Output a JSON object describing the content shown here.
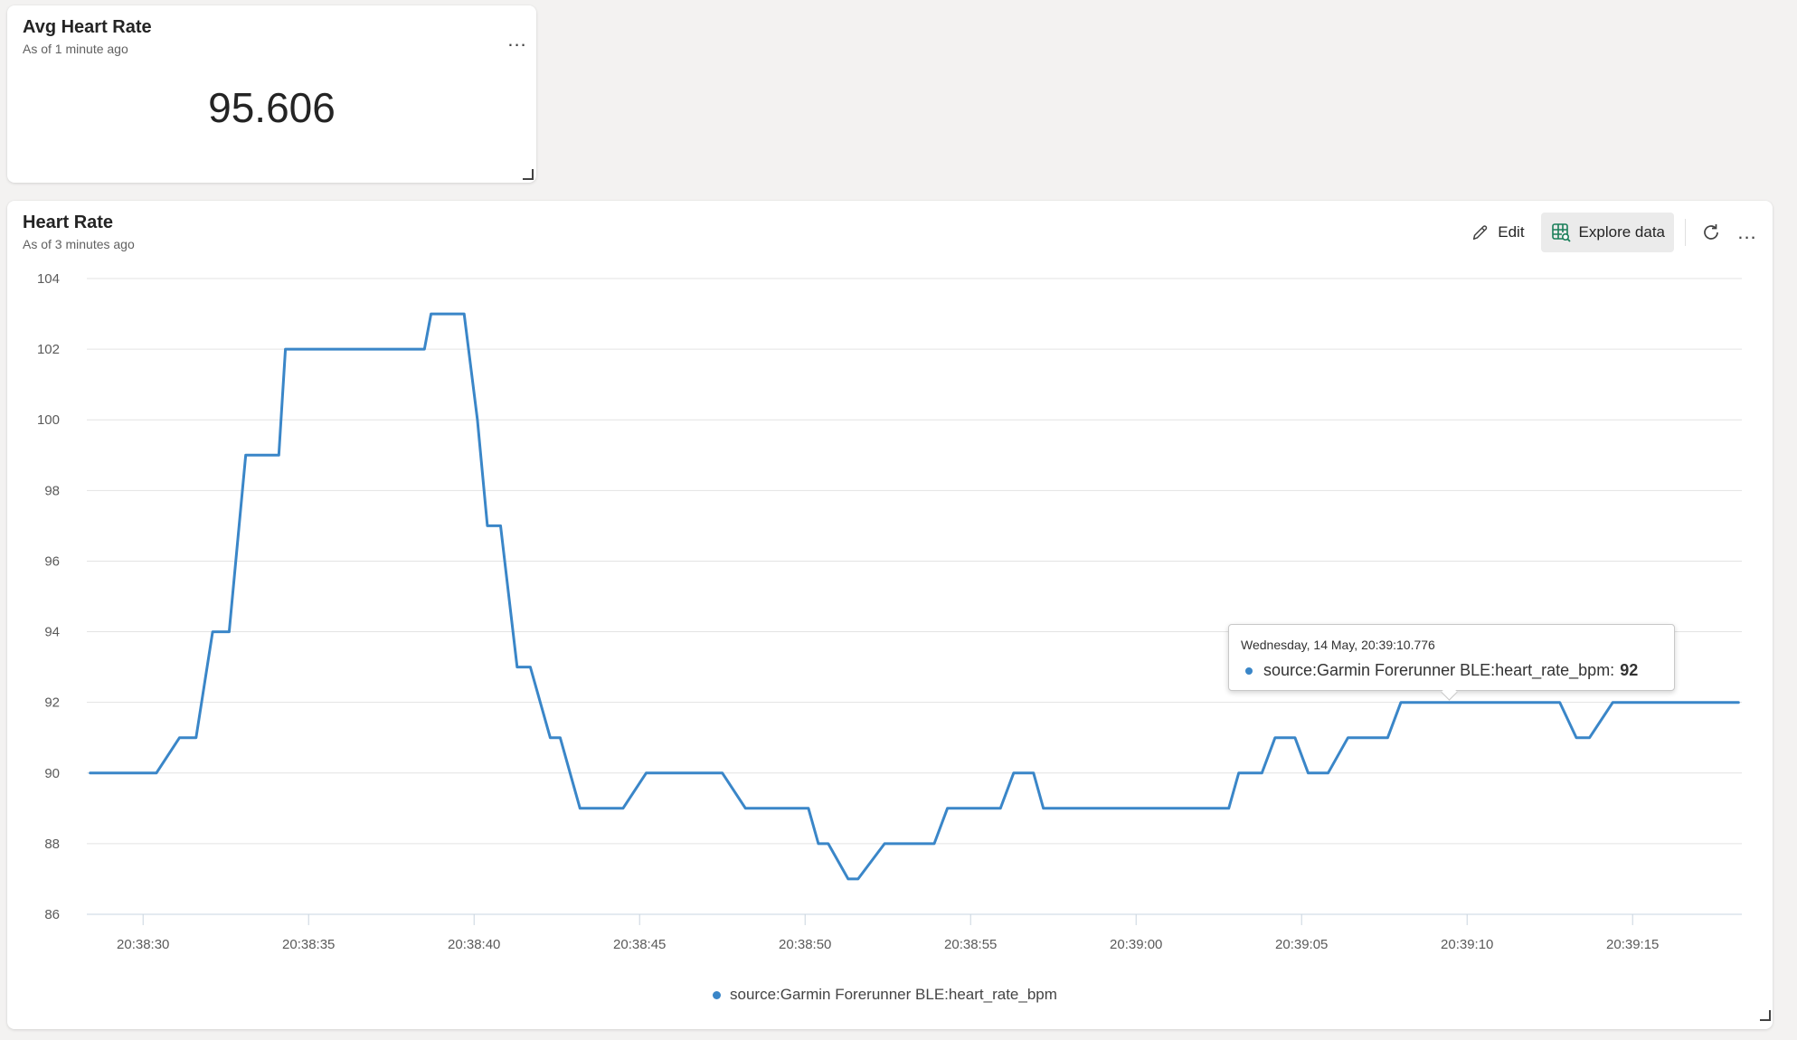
{
  "avg_card": {
    "title": "Avg Heart Rate",
    "subtitle": "As of 1 minute ago",
    "value": "95.606",
    "more_label": "..."
  },
  "hr_card": {
    "title": "Heart Rate",
    "subtitle": "As of 3 minutes ago",
    "toolbar": {
      "edit_label": "Edit",
      "explore_label": "Explore data",
      "more_label": "..."
    }
  },
  "tooltip": {
    "date": "Wednesday, 14 May, 20:39:10.776",
    "series": "source:Garmin Forerunner BLE:heart_rate_bpm:",
    "value": "92"
  },
  "legend": {
    "label": "source:Garmin Forerunner BLE:heart_rate_bpm"
  },
  "colors": {
    "series": "#3a86c8",
    "card_bg": "#ffffff",
    "page_bg": "#f3f2f1"
  },
  "chart_data": {
    "type": "line",
    "title": "Heart Rate",
    "xlabel": "",
    "ylabel": "",
    "ylim": [
      86,
      104
    ],
    "yticks": [
      86,
      88,
      90,
      92,
      94,
      96,
      98,
      100,
      102,
      104
    ],
    "xlim": [
      "20:38:28.3",
      "20:39:18.3"
    ],
    "xticks": [
      "20:38:30",
      "20:38:35",
      "20:38:40",
      "20:38:45",
      "20:38:50",
      "20:38:55",
      "20:39:00",
      "20:39:05",
      "20:39:10",
      "20:39:15"
    ],
    "grid": true,
    "legend_position": "bottom",
    "series": [
      {
        "name": "source:Garmin Forerunner BLE:heart_rate_bpm",
        "x": [
          "20:38:28.4",
          "20:38:30.4",
          "20:38:31.1",
          "20:38:31.6",
          "20:38:32.1",
          "20:38:32.6",
          "20:38:33.1",
          "20:38:34.1",
          "20:38:34.3",
          "20:38:38.5",
          "20:38:38.7",
          "20:38:39.7",
          "20:38:40.1",
          "20:38:40.4",
          "20:38:40.8",
          "20:38:41.3",
          "20:38:41.7",
          "20:38:42.3",
          "20:38:42.6",
          "20:38:43.2",
          "20:38:44.5",
          "20:38:45.2",
          "20:38:47.5",
          "20:38:48.2",
          "20:38:50.1",
          "20:38:50.4",
          "20:38:50.7",
          "20:38:51.3",
          "20:38:51.6",
          "20:38:52.4",
          "20:38:53.9",
          "20:38:54.3",
          "20:38:55.9",
          "20:38:56.3",
          "20:38:56.9",
          "20:38:57.2",
          "20:39:02.8",
          "20:39:03.1",
          "20:39:03.8",
          "20:39:04.2",
          "20:39:04.8",
          "20:39:05.2",
          "20:39:05.8",
          "20:39:06.4",
          "20:39:07.6",
          "20:39:08.0",
          "20:39:11.0",
          "20:39:12.8",
          "20:39:13.3",
          "20:39:13.7",
          "20:39:14.4",
          "20:39:18.2"
        ],
        "values": [
          90,
          90,
          91,
          91,
          94,
          94,
          99,
          99,
          102,
          102,
          103,
          103,
          100,
          97,
          97,
          93,
          93,
          91,
          91,
          89,
          89,
          90,
          90,
          89,
          89,
          88,
          88,
          87,
          87,
          88,
          88,
          89,
          89,
          90,
          90,
          89,
          89,
          90,
          90,
          91,
          91,
          90,
          90,
          91,
          91,
          92,
          92,
          92,
          91,
          91,
          92,
          92
        ]
      }
    ]
  }
}
